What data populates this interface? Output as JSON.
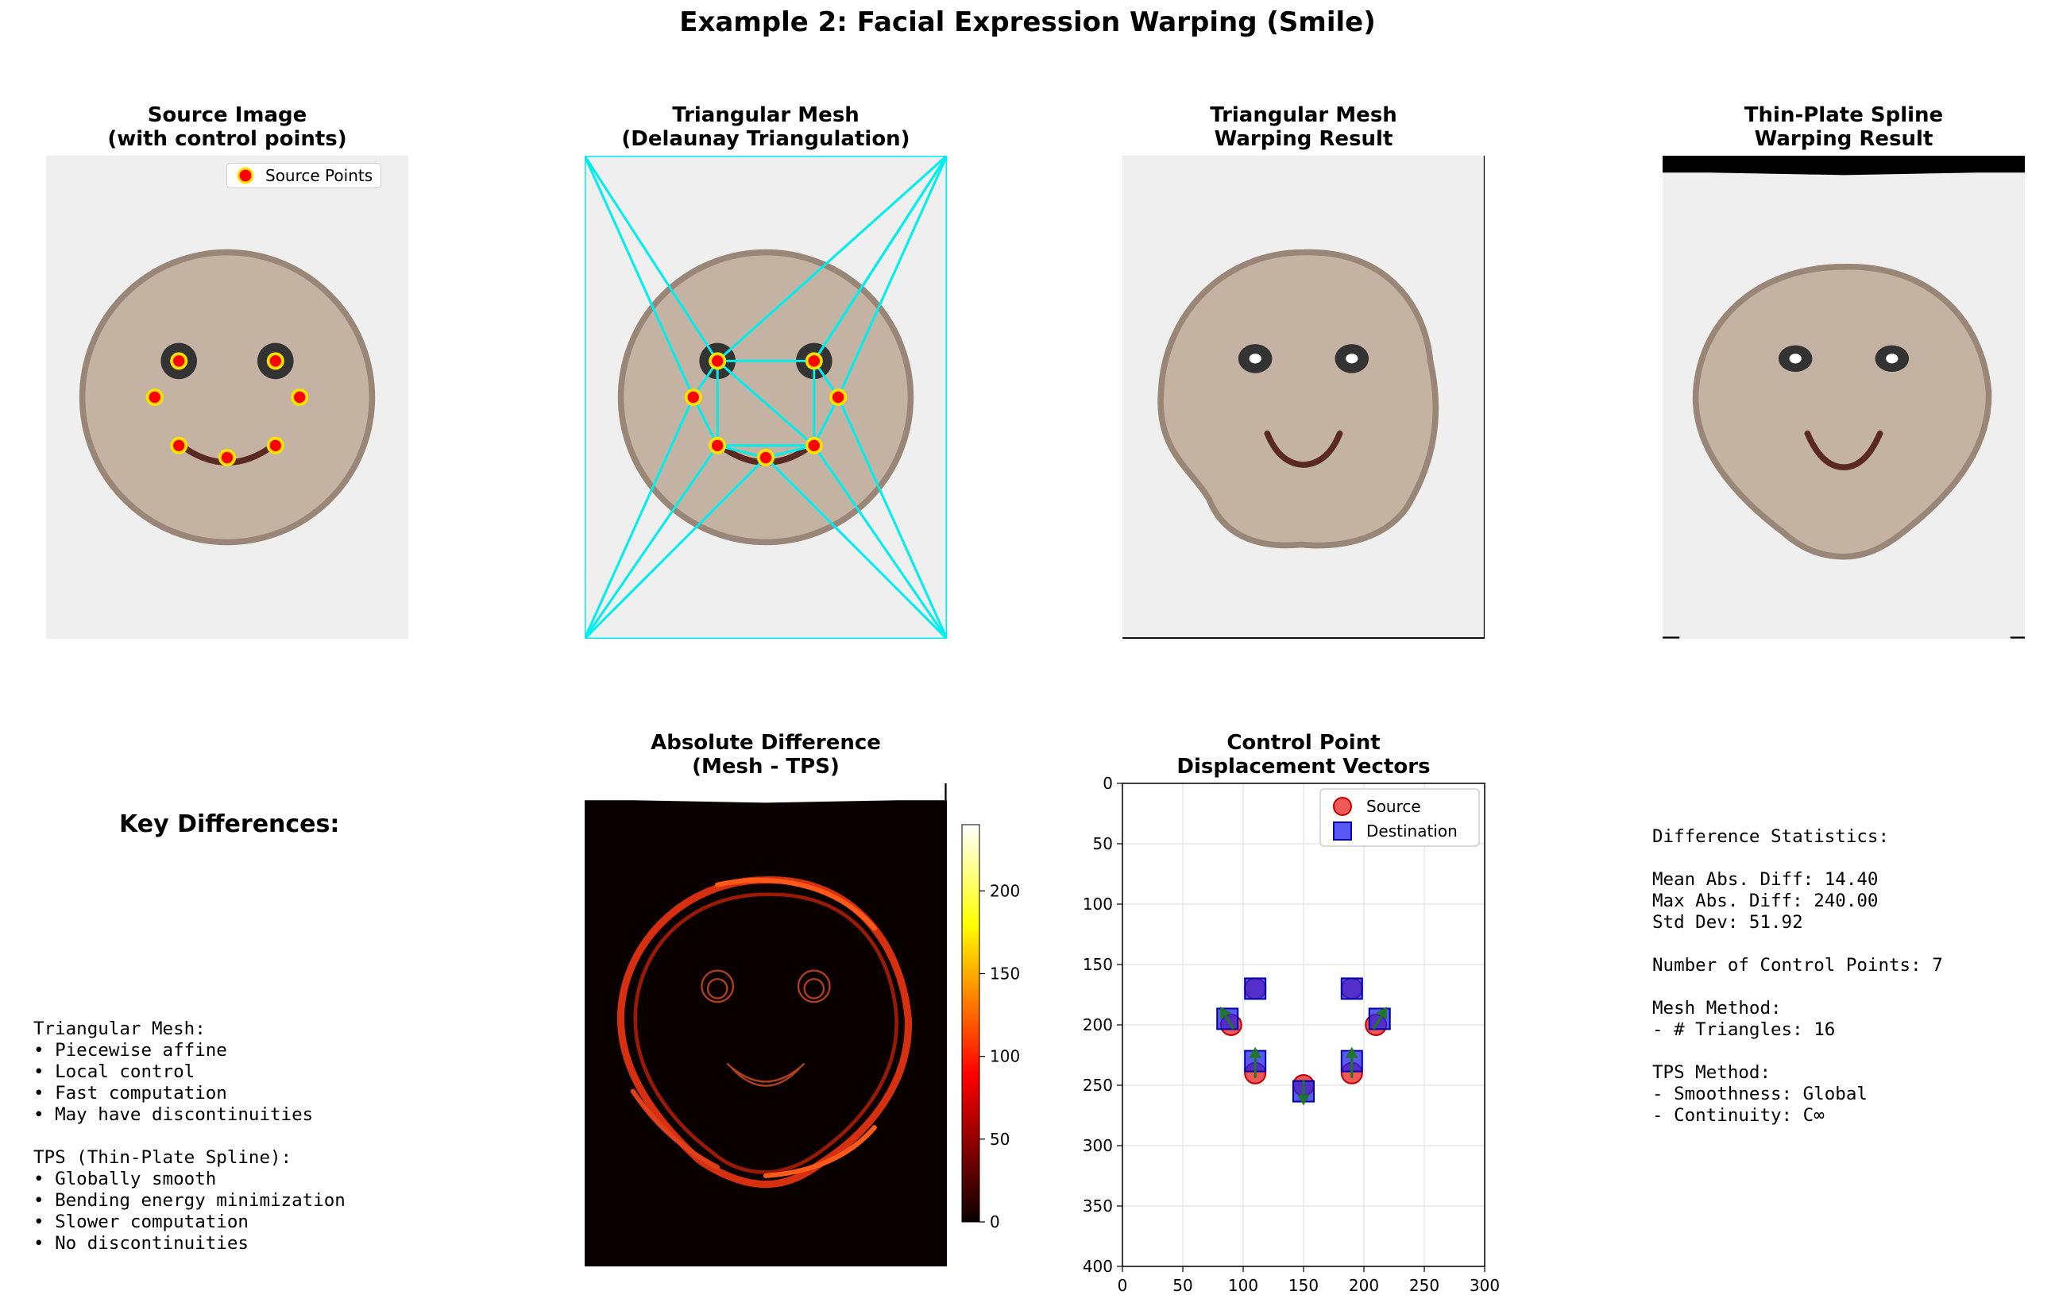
{
  "figure": {
    "suptitle": "Example 2: Facial Expression Warping (Smile)"
  },
  "panels": {
    "source": {
      "title": [
        "Source Image",
        "(with control points)"
      ],
      "legend": "Source Points"
    },
    "mesh": {
      "title": [
        "Triangular Mesh",
        "(Delaunay Triangulation)"
      ]
    },
    "mesh_result": {
      "title": [
        "Triangular Mesh",
        "Warping Result"
      ]
    },
    "tps_result": {
      "title": [
        "Thin-Plate Spline",
        "Warping Result"
      ]
    },
    "diff": {
      "title": [
        "Absolute Difference",
        "(Mesh - TPS)"
      ],
      "colorbar_ticks": [
        "0",
        "50",
        "100",
        "150",
        "200"
      ],
      "colormap": "hot"
    },
    "key": {
      "title": "Key Differences:",
      "lines": [
        "Triangular Mesh:",
        "• Piecewise affine",
        "• Local control",
        "• Fast computation",
        "• May have discontinuities",
        "",
        "TPS (Thin-Plate Spline):",
        "• Globally smooth",
        "• Bending energy minimization",
        "• Slower computation",
        "• No discontinuities"
      ]
    },
    "stats": {
      "lines": [
        "Difference Statistics:",
        "",
        "Mean Abs. Diff: 14.40",
        "Max Abs. Diff: 240.00",
        "Std Dev: 51.92",
        "",
        "Number of Control Points: 7",
        "",
        "Mesh Method:",
        "- # Triangles: 16",
        "",
        "TPS Method:",
        "- Smoothness: Global",
        "- Continuity: C∞"
      ]
    }
  },
  "chart_data": {
    "type": "scatter",
    "title": "Control Point\nDisplacement Vectors",
    "xlim": [
      0,
      300
    ],
    "ylim": [
      400,
      0
    ],
    "xticks": [
      0,
      50,
      100,
      150,
      200,
      250,
      300
    ],
    "yticks": [
      0,
      50,
      100,
      150,
      200,
      250,
      300,
      350,
      400
    ],
    "grid": true,
    "legend_position": "top-right",
    "series": [
      {
        "name": "Source",
        "marker": "circle",
        "color": "#e82020",
        "x": [
          110,
          190,
          90,
          210,
          110,
          150,
          190
        ],
        "y": [
          170,
          170,
          200,
          200,
          240,
          250,
          240
        ]
      },
      {
        "name": "Destination",
        "marker": "square",
        "color": "#2020ee",
        "x": [
          110,
          190,
          87,
          213,
          110,
          150,
          190
        ],
        "y": [
          170,
          170,
          195,
          195,
          230,
          255,
          230
        ]
      }
    ],
    "arrows_color": "#1a7a1a"
  },
  "colors": {
    "face_fill": "#c4b2a2",
    "face_outline": "#998677",
    "background": "#efefef",
    "mesh_edges": "#00eeee",
    "point_fill": "#ff0000",
    "point_edge": "#ffe100",
    "mouth": "#5a2a22",
    "eye": "#333333"
  }
}
